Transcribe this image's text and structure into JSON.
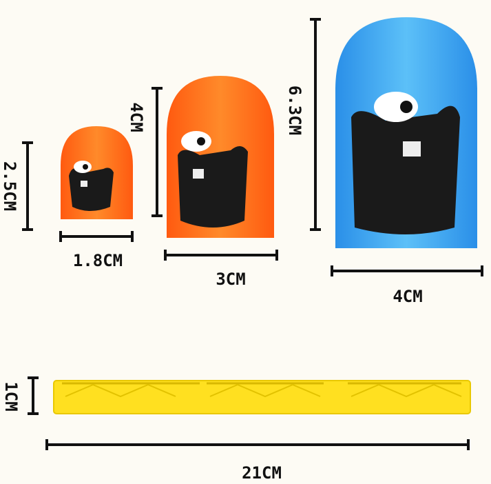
{
  "labels": {
    "small_height": "2.5CM",
    "small_width": "1.8CM",
    "medium_height": "4CM",
    "medium_width": "3CM",
    "large_height": "6.3CM",
    "large_width": "4CM",
    "bar_height": "1CM",
    "bar_width": "21CM"
  },
  "colors": {
    "small_cup": "#ff6a1a",
    "medium_cup": "#ff7a1c",
    "large_cup": "#3aa6f0",
    "bar": "#ffe020",
    "dimension_lines": "#111111"
  }
}
